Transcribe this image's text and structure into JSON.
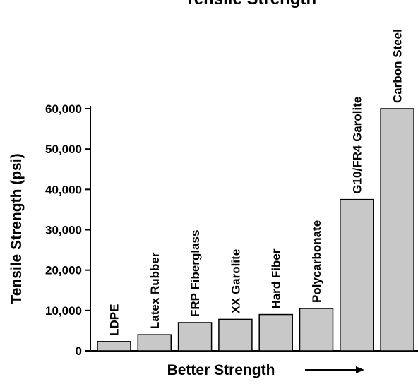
{
  "chart_data": {
    "type": "bar",
    "title": "Tensile Strength",
    "xlabel": "Better Strength",
    "ylabel": "Tensile Strength (psi)",
    "categories": [
      "LDPE",
      "Latex Rubber",
      "FRP Fiberglass",
      "XX Garolite",
      "Hard Fiber",
      "Polycarbonate",
      "G10/FR4 Garolite",
      "Carbon Steel"
    ],
    "values": [
      2300,
      4000,
      7000,
      7800,
      9000,
      10500,
      37500,
      60000
    ],
    "yticks": [
      "0",
      "10,000",
      "20,000",
      "30,000",
      "40,000",
      "50,000",
      "60,000"
    ],
    "ylim": [
      0,
      60000
    ],
    "grid": false,
    "colors": {
      "bar_fill": "#c8c8c8",
      "bar_stroke": "#000000",
      "text": "#000000"
    }
  }
}
